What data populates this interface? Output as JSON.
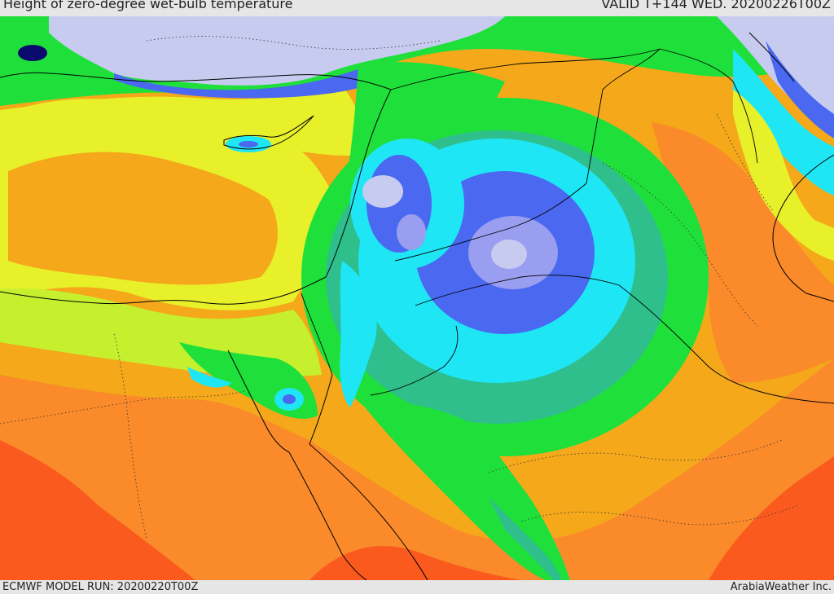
{
  "header": {
    "title": "Height of zero-degree wet-bulb temperature",
    "valid": "VALID T+144 WED. 20200226T00Z"
  },
  "footer": {
    "model_run": "ECMWF MODEL RUN: 20200220T00Z",
    "credit": "ArabiaWeather Inc."
  },
  "palette": {
    "below_range": "#c8cbf0",
    "lavender": "#9a9ef0",
    "blue": "#4a68f0",
    "cyan": "#1ee6f5",
    "teal": "#2ebf8c",
    "green": "#1fe03a",
    "yellow_green": "#c6f02e",
    "yellow": "#e8f02a",
    "orange": "#f4a81a",
    "dark_orange": "#fa8a2a",
    "red_orange": "#fa5a1e",
    "sea_dark": "#0a0a6e"
  }
}
